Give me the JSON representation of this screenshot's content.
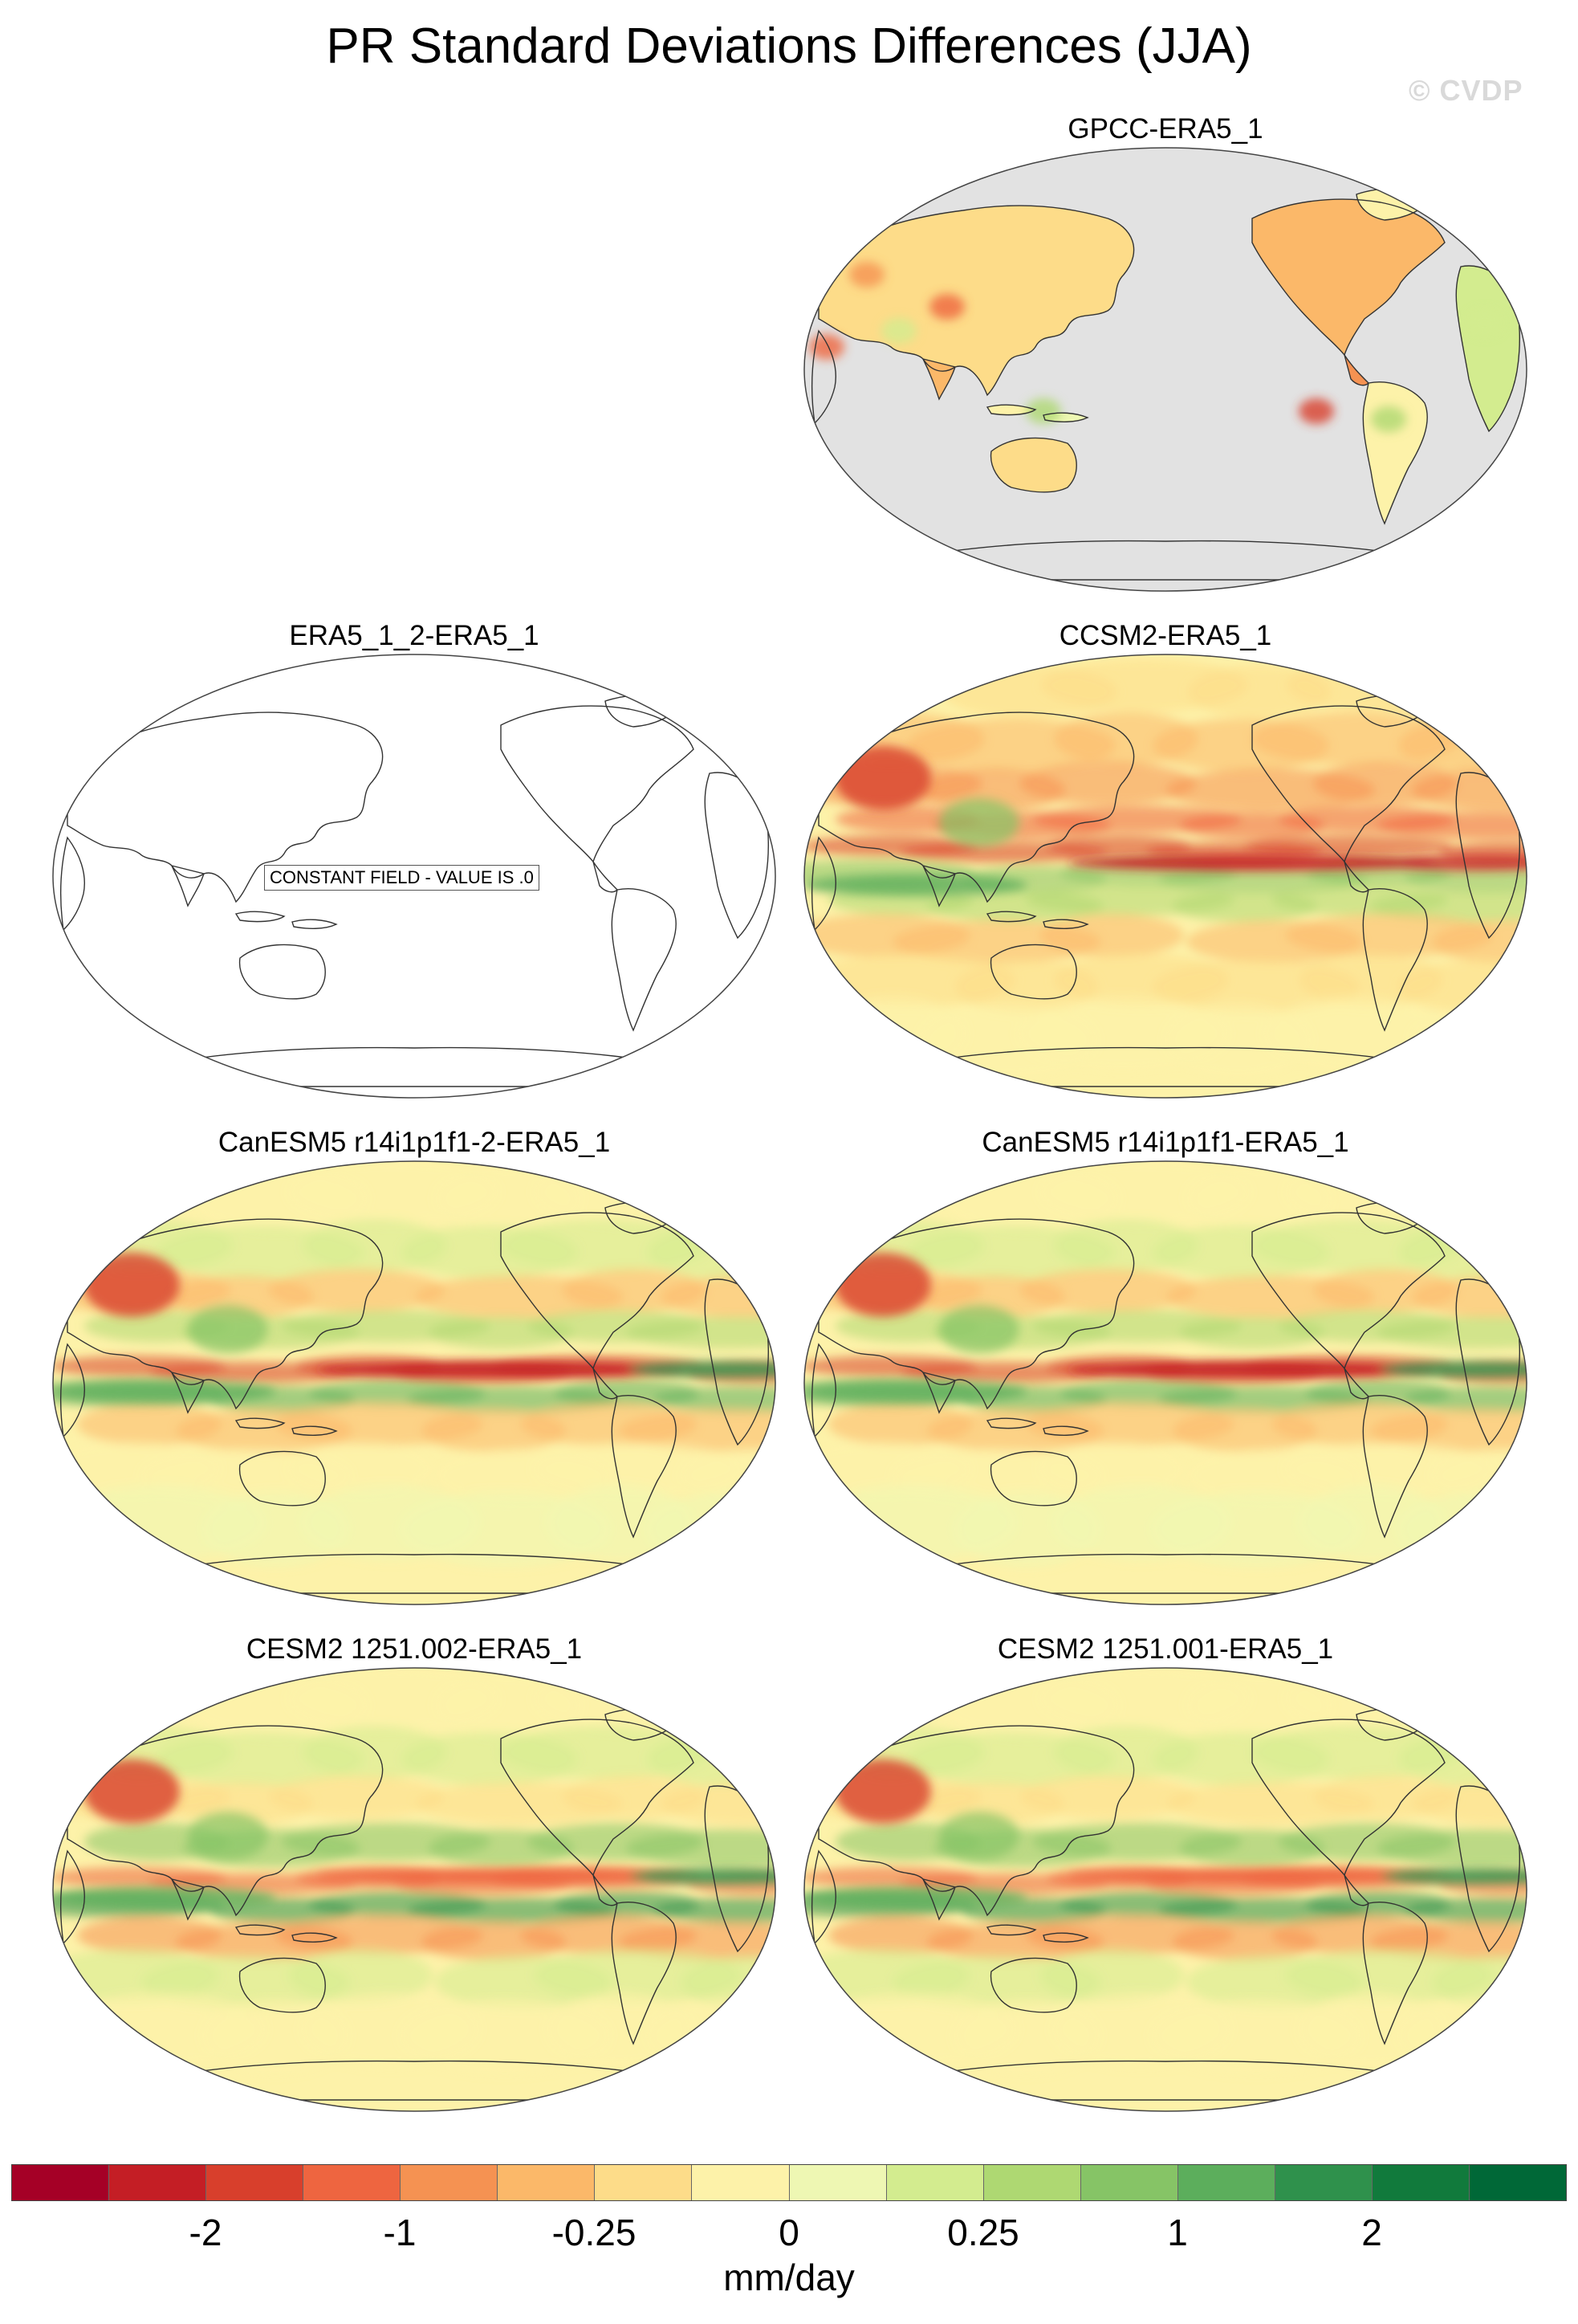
{
  "title": "PR Standard Deviations Differences (JJA)",
  "watermark": "© CVDP",
  "panels": [
    {
      "title": "GPCC-ERA5_1",
      "fill": "land",
      "pos": "top-right"
    },
    {
      "title": "ERA5_1_2-ERA5_1",
      "fill": "none",
      "note": "CONSTANT FIELD - VALUE IS .0",
      "pos": "row2-left"
    },
    {
      "title": "CCSM2-ERA5_1",
      "fill": "full-strong",
      "pos": "row2-right"
    },
    {
      "title": "CanESM5 r14i1p1f1-2-ERA5_1",
      "fill": "full-can",
      "pos": "row3-left"
    },
    {
      "title": "CanESM5 r14i1p1f1-ERA5_1",
      "fill": "full-can",
      "pos": "row3-right"
    },
    {
      "title": "CESM2 1251.002-ERA5_1",
      "fill": "full-cesm",
      "pos": "row4-left"
    },
    {
      "title": "CESM2 1251.001-ERA5_1",
      "fill": "full-cesm",
      "pos": "row4-right"
    }
  ],
  "colorbar": {
    "units": "mm/day",
    "colors": [
      "#a50026",
      "#c41e25",
      "#d83f2c",
      "#ee6540",
      "#f59252",
      "#fbb869",
      "#fddc89",
      "#fdf2a9",
      "#eef7b3",
      "#d3ec8f",
      "#aed872",
      "#86c466",
      "#5cae5c",
      "#2f914c",
      "#117a3c",
      "#006837"
    ],
    "tick_labels": [
      "-2",
      "-1",
      "-0.25",
      "0",
      "0.25",
      "1",
      "2"
    ]
  }
}
